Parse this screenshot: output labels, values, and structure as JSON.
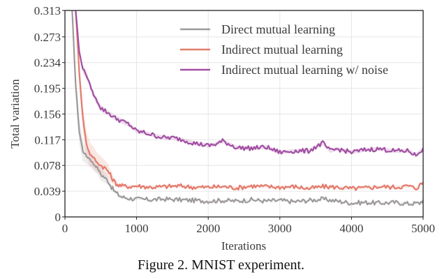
{
  "chart_data": {
    "type": "line",
    "title": "",
    "caption": "Figure 2. MNIST experiment.",
    "xlabel": "Iterations",
    "ylabel": "Total variation",
    "xlim": [
      0,
      5000
    ],
    "ylim": [
      0,
      0.313
    ],
    "xticks": [
      0,
      1000,
      2000,
      3000,
      4000,
      5000
    ],
    "xtick_labels": [
      "0",
      "1000",
      "2000",
      "3000",
      "4000",
      "5000"
    ],
    "yticks": [
      0,
      0.039,
      0.078,
      0.117,
      0.156,
      0.195,
      0.234,
      0.273,
      0.313
    ],
    "ytick_labels": [
      "0",
      "0.039",
      "0.078",
      "0.117",
      "0.156",
      "0.195",
      "0.234",
      "0.273",
      "0.313"
    ],
    "grid": true,
    "legend_position": "top-right",
    "series": [
      {
        "name": "Direct mutual learning",
        "color": "#9e9a9a",
        "x": [
          100,
          150,
          200,
          250,
          300,
          350,
          400,
          450,
          500,
          550,
          600,
          650,
          700,
          750,
          800,
          900,
          1000,
          1200,
          1400,
          1600,
          1800,
          2000,
          2200,
          2400,
          2600,
          2800,
          3000,
          3200,
          3400,
          3600,
          3800,
          4000,
          4200,
          4400,
          4600,
          4800,
          4950,
          5000
        ],
        "values": [
          0.313,
          0.2,
          0.13,
          0.1,
          0.092,
          0.088,
          0.08,
          0.075,
          0.065,
          0.06,
          0.055,
          0.045,
          0.038,
          0.033,
          0.03,
          0.028,
          0.027,
          0.026,
          0.027,
          0.026,
          0.025,
          0.024,
          0.025,
          0.024,
          0.026,
          0.024,
          0.025,
          0.023,
          0.025,
          0.027,
          0.024,
          0.021,
          0.022,
          0.021,
          0.022,
          0.02,
          0.021,
          0.026
        ],
        "band": [
          0.0,
          0.02,
          0.02,
          0.015,
          0.012,
          0.012,
          0.01,
          0.01,
          0.01,
          0.008,
          0.006,
          0.004,
          0.003,
          0.002,
          0.002,
          0.001,
          0.001,
          0.001,
          0.001,
          0.001,
          0.001,
          0.001,
          0.001,
          0.001,
          0.001,
          0.001,
          0.001,
          0.001,
          0.001,
          0.001,
          0.001,
          0.001,
          0.001,
          0.001,
          0.001,
          0.001,
          0.001,
          0.001
        ]
      },
      {
        "name": "Indirect mutual learning",
        "color": "#e47b6c",
        "x": [
          150,
          200,
          250,
          300,
          350,
          400,
          450,
          500,
          550,
          600,
          650,
          700,
          750,
          800,
          900,
          1000,
          1200,
          1400,
          1600,
          1800,
          2000,
          2200,
          2400,
          2600,
          2800,
          3000,
          3200,
          3400,
          3600,
          3800,
          4000,
          4200,
          4400,
          4600,
          4800,
          4900,
          4950,
          5000
        ],
        "values": [
          0.313,
          0.22,
          0.15,
          0.11,
          0.095,
          0.09,
          0.082,
          0.078,
          0.075,
          0.07,
          0.06,
          0.052,
          0.048,
          0.047,
          0.046,
          0.047,
          0.045,
          0.046,
          0.047,
          0.045,
          0.045,
          0.046,
          0.044,
          0.047,
          0.046,
          0.045,
          0.046,
          0.043,
          0.046,
          0.045,
          0.043,
          0.044,
          0.046,
          0.045,
          0.047,
          0.043,
          0.048,
          0.052
        ],
        "band": [
          0.0,
          0.02,
          0.02,
          0.02,
          0.018,
          0.016,
          0.015,
          0.014,
          0.012,
          0.01,
          0.008,
          0.005,
          0.003,
          0.002,
          0.002,
          0.002,
          0.002,
          0.002,
          0.002,
          0.002,
          0.002,
          0.002,
          0.002,
          0.002,
          0.002,
          0.002,
          0.002,
          0.002,
          0.002,
          0.002,
          0.002,
          0.002,
          0.002,
          0.002,
          0.002,
          0.002,
          0.002,
          0.002
        ]
      },
      {
        "name": "Indirect mutual learning w/ noise",
        "color": "#a24fa3",
        "x": [
          150,
          200,
          250,
          300,
          350,
          400,
          450,
          500,
          600,
          700,
          800,
          900,
          1000,
          1100,
          1200,
          1300,
          1400,
          1500,
          1600,
          1700,
          1800,
          1900,
          2000,
          2100,
          2200,
          2400,
          2600,
          2800,
          3000,
          3200,
          3400,
          3600,
          3700,
          3800,
          4000,
          4200,
          4400,
          4600,
          4800,
          4900,
          5000
        ],
        "values": [
          0.313,
          0.25,
          0.225,
          0.215,
          0.2,
          0.185,
          0.175,
          0.165,
          0.158,
          0.15,
          0.145,
          0.14,
          0.13,
          0.128,
          0.125,
          0.122,
          0.12,
          0.12,
          0.118,
          0.115,
          0.112,
          0.11,
          0.108,
          0.11,
          0.115,
          0.105,
          0.104,
          0.106,
          0.098,
          0.1,
          0.1,
          0.112,
          0.1,
          0.103,
          0.098,
          0.102,
          0.103,
          0.1,
          0.1,
          0.093,
          0.104
        ],
        "band": [
          0.0,
          0.006,
          0.006,
          0.006,
          0.005,
          0.005,
          0.005,
          0.005,
          0.004,
          0.004,
          0.004,
          0.004,
          0.003,
          0.003,
          0.003,
          0.003,
          0.003,
          0.003,
          0.003,
          0.003,
          0.003,
          0.003,
          0.003,
          0.003,
          0.003,
          0.003,
          0.003,
          0.003,
          0.003,
          0.003,
          0.003,
          0.003,
          0.003,
          0.003,
          0.003,
          0.003,
          0.003,
          0.003,
          0.003,
          0.003,
          0.003
        ]
      }
    ]
  }
}
